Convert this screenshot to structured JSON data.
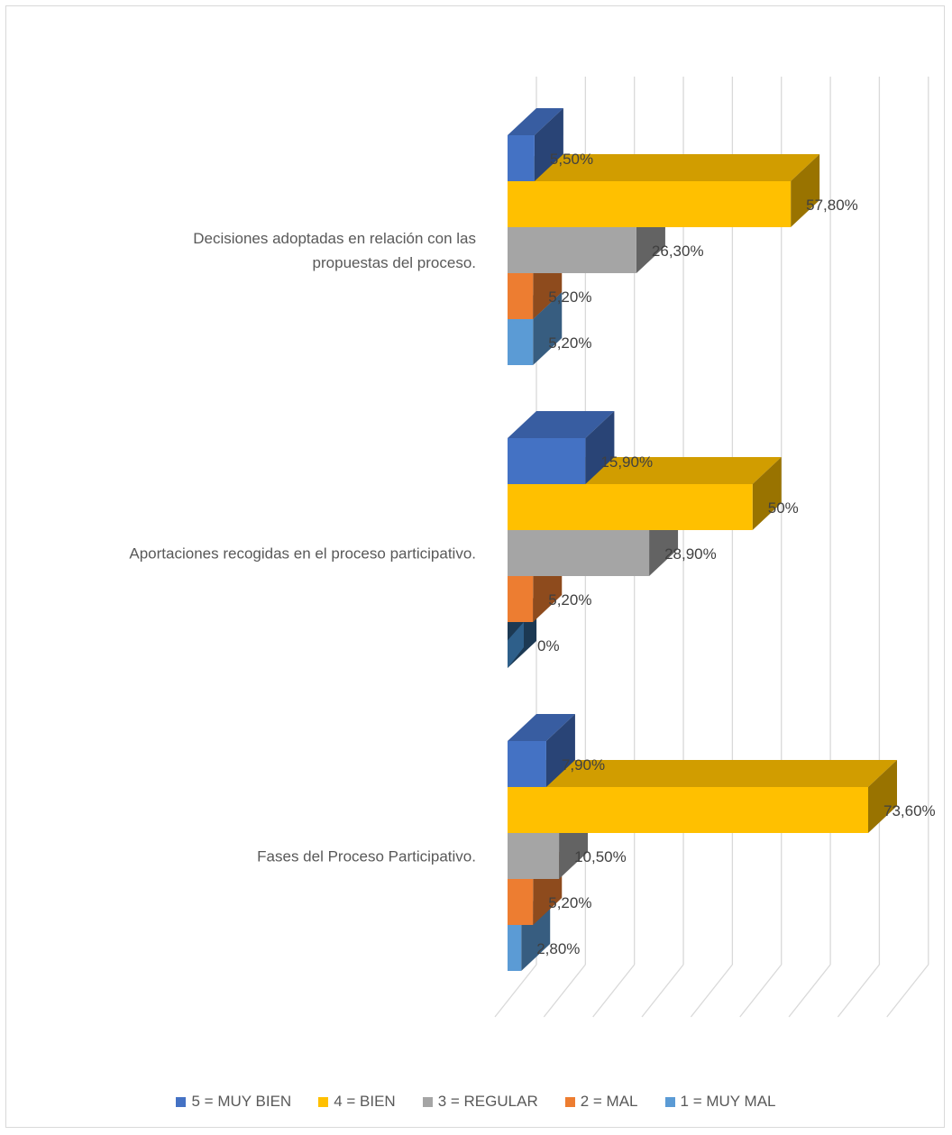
{
  "chart_data": {
    "type": "bar",
    "orientation": "horizontal",
    "style": "3d-clustered",
    "categories": [
      "Decisiones adoptadas en relación con las propuestas del proceso.",
      "Aportaciones recogidas en el proceso participativo.",
      "Fases del Proceso Participativo."
    ],
    "category_lines": [
      [
        "Decisiones adoptadas en relación con las",
        "propuestas del proceso."
      ],
      [
        "Aportaciones recogidas en el proceso participativo."
      ],
      [
        "Fases del Proceso Participativo."
      ]
    ],
    "series": [
      {
        "name": "5 = MUY BIEN",
        "color": "#4472c4",
        "values": [
          5.5,
          15.9,
          7.9
        ],
        "labels": [
          "5,50%",
          "15,90%",
          "7,90%"
        ]
      },
      {
        "name": "4 = BIEN",
        "color": "#ffc000",
        "values": [
          57.8,
          50,
          73.6
        ],
        "labels": [
          "57,80%",
          "50%",
          "73,60%"
        ]
      },
      {
        "name": "3 = REGULAR",
        "color": "#a5a5a5",
        "values": [
          26.3,
          28.9,
          10.5
        ],
        "labels": [
          "26,30%",
          "28,90%",
          "10,50%"
        ]
      },
      {
        "name": "2 = MAL",
        "color": "#ed7d31",
        "values": [
          5.2,
          5.2,
          5.2
        ],
        "labels": [
          "5,20%",
          "5,20%",
          "5,20%"
        ]
      },
      {
        "name": "1 = MUY MAL",
        "color": "#5b9bd5",
        "values": [
          5.2,
          0,
          2.8
        ],
        "labels": [
          "5,20%",
          "0%",
          "2,80%"
        ]
      }
    ],
    "xlim": [
      0,
      80
    ],
    "grid": true,
    "legend_position": "bottom"
  }
}
